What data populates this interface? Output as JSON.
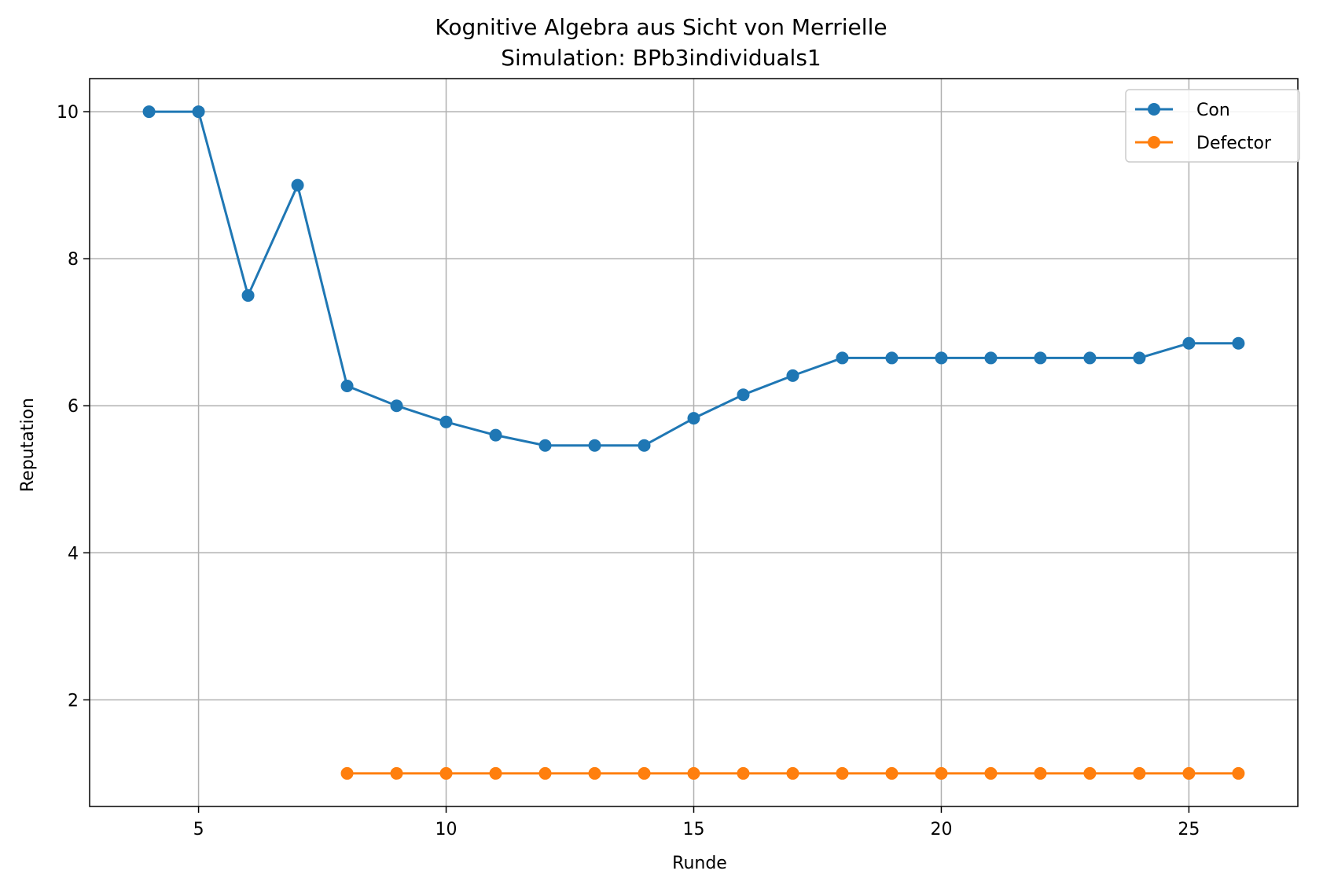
{
  "chart_data": {
    "type": "line",
    "title": "Kognitive Algebra aus Sicht von Merrielle",
    "subtitle": "Simulation: BPb3individuals1",
    "xlabel": "Runde",
    "ylabel": "Reputation",
    "xlim": [
      2.8,
      27.2
    ],
    "ylim": [
      0.55,
      10.45
    ],
    "xticks": [
      5,
      10,
      15,
      20,
      25
    ],
    "yticks": [
      2,
      4,
      6,
      8,
      10
    ],
    "grid": true,
    "legend_position": "top-right",
    "series": [
      {
        "name": "Con",
        "color": "#1f77b4",
        "marker": "circle",
        "x": [
          4,
          5,
          6,
          7,
          8,
          9,
          10,
          11,
          12,
          13,
          14,
          15,
          16,
          17,
          18,
          19,
          20,
          21,
          22,
          23,
          24,
          25,
          26
        ],
        "y": [
          10.0,
          10.0,
          7.5,
          9.0,
          6.27,
          6.0,
          5.78,
          5.6,
          5.46,
          5.46,
          5.46,
          5.83,
          6.15,
          6.41,
          6.65,
          6.65,
          6.65,
          6.65,
          6.65,
          6.65,
          6.65,
          6.85,
          6.85
        ]
      },
      {
        "name": "Defector",
        "color": "#ff7f0e",
        "marker": "circle",
        "x": [
          8,
          9,
          10,
          11,
          12,
          13,
          14,
          15,
          16,
          17,
          18,
          19,
          20,
          21,
          22,
          23,
          24,
          25,
          26
        ],
        "y": [
          1.0,
          1.0,
          1.0,
          1.0,
          1.0,
          1.0,
          1.0,
          1.0,
          1.0,
          1.0,
          1.0,
          1.0,
          1.0,
          1.0,
          1.0,
          1.0,
          1.0,
          1.0,
          1.0
        ]
      }
    ]
  }
}
